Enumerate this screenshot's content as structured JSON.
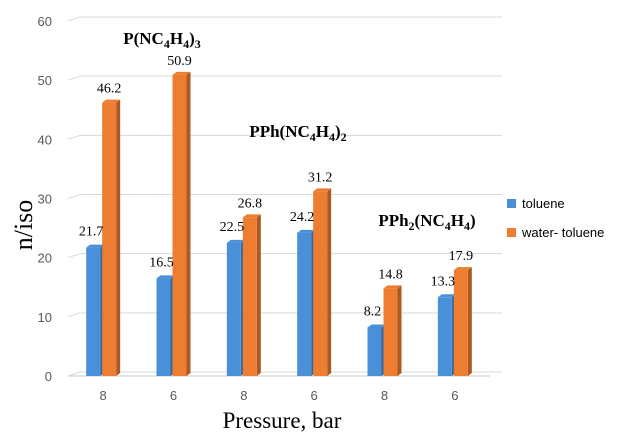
{
  "chart_data": {
    "type": "bar",
    "style": "3d-clustered-column",
    "categories": [
      "8",
      "6",
      "8",
      "6",
      "8",
      "6"
    ],
    "series": [
      {
        "name": "toluene",
        "color": "#4a90d9",
        "values": [
          21.7,
          16.5,
          22.5,
          24.2,
          8.2,
          13.3
        ]
      },
      {
        "name": "water- toluene",
        "color": "#ed7d31",
        "values": [
          46.2,
          50.9,
          26.8,
          31.2,
          14.8,
          17.9
        ]
      }
    ],
    "data_labels": {
      "toluene": [
        "21.7",
        "16.5",
        "22.5",
        "24.2",
        "8.2",
        "13.3"
      ],
      "water- toluene": [
        "46.2",
        "50.9",
        "26.8",
        "31.2",
        "14.8",
        "17.9"
      ]
    },
    "y_ticks": [
      "0",
      "10",
      "20",
      "30",
      "40",
      "50",
      "60"
    ],
    "ylim": [
      0,
      60
    ],
    "xlabel": "Pressure, bar",
    "ylabel": "n/iso",
    "grid": true,
    "legend_position": "right",
    "group_labels": [
      {
        "parts": [
          {
            "t": "P(NC"
          },
          {
            "t": "4",
            "sub": true
          },
          {
            "t": "H"
          },
          {
            "t": "4",
            "sub": true
          },
          {
            "t": ")"
          },
          {
            "t": "3",
            "sub": true
          }
        ],
        "categories": [
          0,
          1
        ]
      },
      {
        "parts": [
          {
            "t": "PPh(NC"
          },
          {
            "t": "4",
            "sub": true
          },
          {
            "t": "H"
          },
          {
            "t": "4",
            "sub": true
          },
          {
            "t": ")"
          },
          {
            "t": "2",
            "sub": true
          }
        ],
        "categories": [
          2,
          3
        ]
      },
      {
        "parts": [
          {
            "t": "PPh"
          },
          {
            "t": "2",
            "sub": true
          },
          {
            "t": "(NC"
          },
          {
            "t": "4",
            "sub": true
          },
          {
            "t": "H"
          },
          {
            "t": "4",
            "sub": true
          },
          {
            "t": ")"
          }
        ],
        "categories": [
          4,
          5
        ]
      }
    ]
  }
}
